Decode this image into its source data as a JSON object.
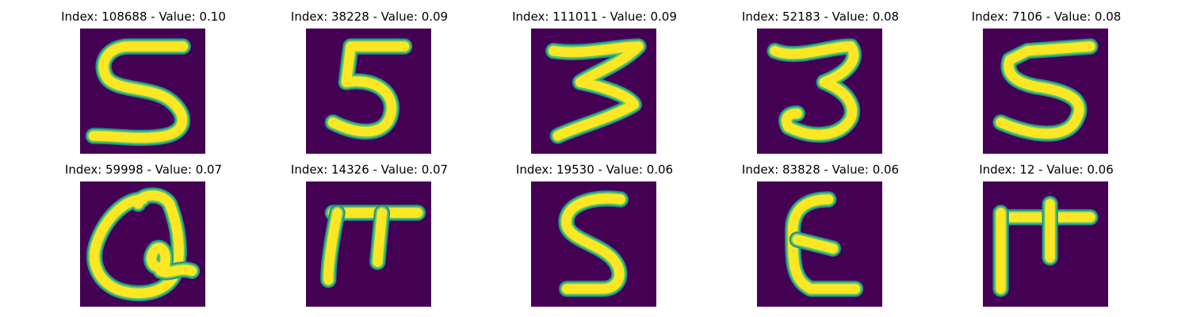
{
  "colors": {
    "background": "#440154",
    "stroke_core": "#fde725",
    "stroke_edge": "#21918c",
    "stroke_mid": "#5ec962"
  },
  "panels": [
    {
      "title": "Index: 108688 - Value: 0.10",
      "index": 108688,
      "value": 0.1,
      "glyph": "5"
    },
    {
      "title": "Index: 38228 - Value: 0.09",
      "index": 38228,
      "value": 0.09,
      "glyph": "5"
    },
    {
      "title": "Index: 111011 - Value: 0.09",
      "index": 111011,
      "value": 0.09,
      "glyph": "3"
    },
    {
      "title": "Index: 52183 - Value: 0.08",
      "index": 52183,
      "value": 0.08,
      "glyph": "3"
    },
    {
      "title": "Index: 7106 - Value: 0.08",
      "index": 7106,
      "value": 0.08,
      "glyph": "5"
    },
    {
      "title": "Index: 59998 - Value: 0.07",
      "index": 59998,
      "value": 0.07,
      "glyph": "loop"
    },
    {
      "title": "Index: 14326 - Value: 0.07",
      "index": 14326,
      "value": 0.07,
      "glyph": "pi"
    },
    {
      "title": "Index: 19530 - Value: 0.06",
      "index": 19530,
      "value": 0.06,
      "glyph": "5"
    },
    {
      "title": "Index: 83828 - Value: 0.06",
      "index": 83828,
      "value": 0.06,
      "glyph": "epsilon"
    },
    {
      "title": "Index: 12 - Value: 0.06",
      "index": 12,
      "value": 0.06,
      "glyph": "pi"
    }
  ]
}
